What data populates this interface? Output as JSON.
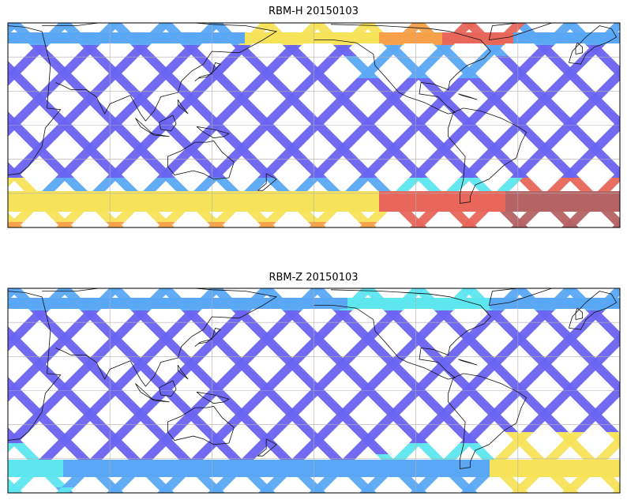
{
  "panels": [
    {
      "title": "RBM-H 20150103",
      "south_band": "hot",
      "colors": {
        "low": "#6a63f0",
        "mid": "#5aa8f5",
        "cyan": "#5de6ee",
        "yellow": "#f7e35a",
        "orange": "#f6a14a",
        "red": "#e8665a",
        "dark": "#b56363"
      }
    },
    {
      "title": "RBM-Z 20150103",
      "south_band": "mild",
      "colors": {
        "low": "#6a63f0",
        "mid": "#5aa8f5",
        "cyan": "#5de6ee",
        "yellow": "#f7e35a",
        "orange": "#f6a14a",
        "red": "#e8665a",
        "dark": "#b56363"
      }
    }
  ]
}
